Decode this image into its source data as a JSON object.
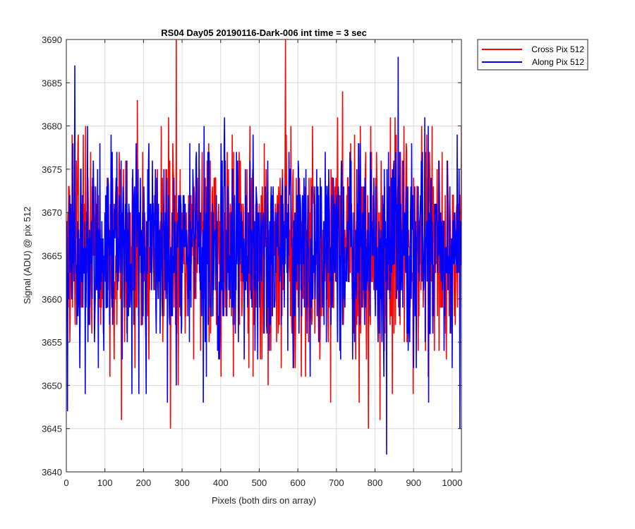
{
  "chart_data": {
    "type": "line",
    "title": "RS04 Day05 20190116-Dark-006 int time = 3 sec",
    "xlabel": "Pixels (both dirs on array)",
    "ylabel": "Signal (ADU) @ pix 512",
    "xlim": [
      0,
      1024
    ],
    "ylim": [
      3640,
      3690
    ],
    "xticks": [
      0,
      100,
      200,
      300,
      400,
      500,
      600,
      700,
      800,
      900,
      1000
    ],
    "yticks": [
      3640,
      3645,
      3650,
      3655,
      3660,
      3665,
      3670,
      3675,
      3680,
      3685,
      3690
    ],
    "grid": true,
    "legend_location": "outside top-right",
    "series": [
      {
        "name": "Cross Pix 512",
        "color": "#ff0000",
        "x_start": 1,
        "x_step": 1,
        "n_points": 1024,
        "mean": 3666,
        "std": 6.0,
        "min": 3645,
        "max": 3690,
        "highlights": [
          {
            "x": 1,
            "y": 3661
          },
          {
            "x": 143,
            "y": 3646
          },
          {
            "x": 270,
            "y": 3645
          },
          {
            "x": 285,
            "y": 3690
          },
          {
            "x": 290,
            "y": 3650
          },
          {
            "x": 568,
            "y": 3690
          },
          {
            "x": 783,
            "y": 3645
          },
          {
            "x": 813,
            "y": 3646
          },
          {
            "x": 1024,
            "y": 3680
          }
        ]
      },
      {
        "name": "Along Pix 512",
        "color": "#0000ff",
        "x_start": 1,
        "x_step": 1,
        "n_points": 1024,
        "mean": 3666,
        "std": 6.0,
        "min": 3642,
        "max": 3688,
        "highlights": [
          {
            "x": 3,
            "y": 3647
          },
          {
            "x": 22,
            "y": 3687
          },
          {
            "x": 262,
            "y": 3648
          },
          {
            "x": 355,
            "y": 3648
          },
          {
            "x": 830,
            "y": 3642
          },
          {
            "x": 860,
            "y": 3688
          },
          {
            "x": 1020,
            "y": 3645
          }
        ]
      }
    ]
  }
}
